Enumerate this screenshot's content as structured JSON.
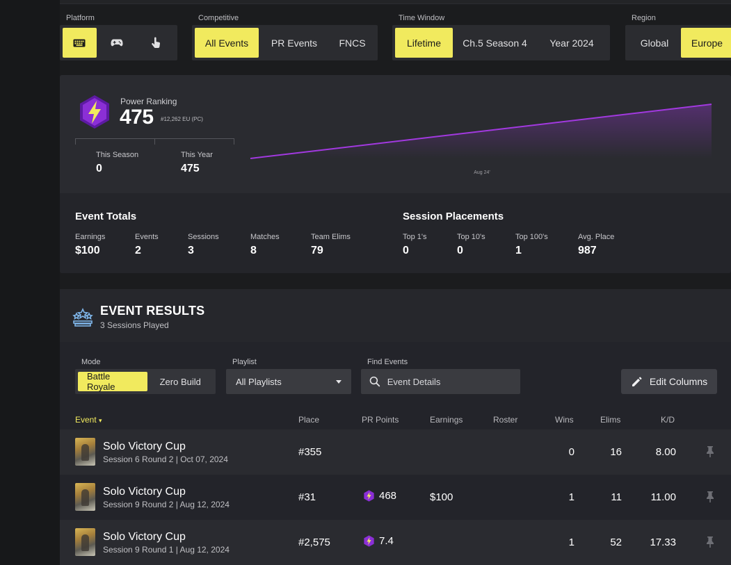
{
  "filters": {
    "platform": {
      "label": "Platform",
      "options": [
        {
          "icon": "keyboard-icon",
          "active": true
        },
        {
          "icon": "gamepad-icon",
          "active": false
        },
        {
          "icon": "touch-icon",
          "active": false
        }
      ]
    },
    "competitive": {
      "label": "Competitive",
      "options": [
        {
          "label": "All Events",
          "active": true
        },
        {
          "label": "PR Events",
          "active": false
        },
        {
          "label": "FNCS",
          "active": false
        }
      ]
    },
    "time_window": {
      "label": "Time Window",
      "options": [
        {
          "label": "Lifetime",
          "active": true
        },
        {
          "label": "Ch.5 Season 4",
          "active": false
        },
        {
          "label": "Year 2024",
          "active": false
        }
      ]
    },
    "region": {
      "label": "Region",
      "options": [
        {
          "label": "Global",
          "active": false
        },
        {
          "label": "Europe",
          "active": true
        }
      ]
    }
  },
  "power_ranking": {
    "label": "Power Ranking",
    "value": "475",
    "rank": "#12,262 EU (PC)",
    "this_season_label": "This Season",
    "this_season": "0",
    "this_year_label": "This Year",
    "this_year": "475",
    "accent_color": "#8b2fd6"
  },
  "chart_data": {
    "type": "area",
    "x": [
      "start",
      "end"
    ],
    "values": [
      0,
      475
    ],
    "tick_labels": [
      "Aug 24'"
    ],
    "line_color": "#a239e0"
  },
  "event_totals": {
    "title": "Event Totals",
    "stats": [
      {
        "label": "Earnings",
        "value": "$100"
      },
      {
        "label": "Events",
        "value": "2"
      },
      {
        "label": "Sessions",
        "value": "3"
      },
      {
        "label": "Matches",
        "value": "8"
      },
      {
        "label": "Team Elims",
        "value": "79"
      }
    ]
  },
  "session_placements": {
    "title": "Session Placements",
    "stats": [
      {
        "label": "Top 1's",
        "value": "0"
      },
      {
        "label": "Top 10's",
        "value": "0"
      },
      {
        "label": "Top 100's",
        "value": "1"
      },
      {
        "label": "Avg. Place",
        "value": "987"
      }
    ]
  },
  "event_results": {
    "title": "EVENT RESULTS",
    "subtitle": "3 Sessions Played",
    "mode_label": "Mode",
    "mode_options": [
      {
        "label": "Battle Royale",
        "active": true
      },
      {
        "label": "Zero Build",
        "active": false
      }
    ],
    "playlist_label": "Playlist",
    "playlist_value": "All Playlists",
    "find_label": "Find Events",
    "find_placeholder": "Event Details",
    "edit_columns": "Edit Columns",
    "columns": [
      "Event",
      "Place",
      "PR Points",
      "Earnings",
      "Roster",
      "Wins",
      "Elims",
      "K/D"
    ],
    "sort_indicator": "▾",
    "rows": [
      {
        "name": "Solo Victory Cup",
        "meta": "Session 6 Round 2 | Oct 07, 2024",
        "place": "#355",
        "pr_points": "",
        "earnings": "",
        "roster": "",
        "wins": "0",
        "elims": "16",
        "kd": "8.00"
      },
      {
        "name": "Solo Victory Cup",
        "meta": "Session 9 Round 2 | Aug 12, 2024",
        "place": "#31",
        "pr_points": "468",
        "earnings": "$100",
        "roster": "",
        "wins": "1",
        "elims": "11",
        "kd": "11.00"
      },
      {
        "name": "Solo Victory Cup",
        "meta": "Session 9 Round 1 | Aug 12, 2024",
        "place": "#2,575",
        "pr_points": "7.4",
        "earnings": "",
        "roster": "",
        "wins": "1",
        "elims": "52",
        "kd": "17.33"
      }
    ]
  },
  "colors": {
    "accent_yellow": "#f1ea5e",
    "pr_purple": "#8b2fd6"
  }
}
